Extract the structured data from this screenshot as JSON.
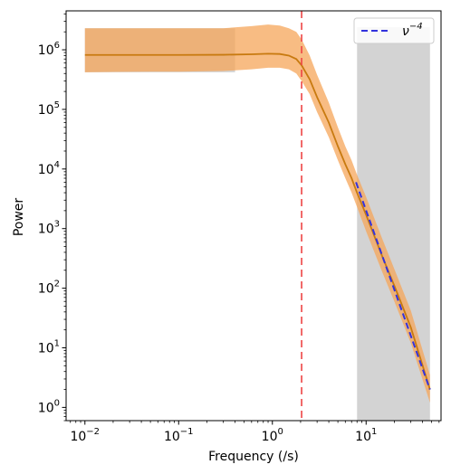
{
  "chart_data": {
    "type": "line",
    "xlabel": "Frequency (/s)",
    "ylabel": "Power",
    "xscale": "log",
    "yscale": "log",
    "xlim": [
      0.0063,
      63
    ],
    "ylim": [
      0.6,
      4500000
    ],
    "xticks": [
      {
        "value": 0.01,
        "base": "10",
        "exp": "−2"
      },
      {
        "value": 0.1,
        "base": "10",
        "exp": "−1"
      },
      {
        "value": 1,
        "base": "10",
        "exp": "0"
      },
      {
        "value": 10,
        "base": "10",
        "exp": "1"
      }
    ],
    "yticks": [
      {
        "value": 1,
        "base": "10",
        "exp": "0"
      },
      {
        "value": 10,
        "base": "10",
        "exp": "1"
      },
      {
        "value": 100,
        "base": "10",
        "exp": "2"
      },
      {
        "value": 1000,
        "base": "10",
        "exp": "3"
      },
      {
        "value": 10000,
        "base": "10",
        "exp": "4"
      },
      {
        "value": 100000,
        "base": "10",
        "exp": "5"
      },
      {
        "value": 1000000,
        "base": "10",
        "exp": "6"
      }
    ],
    "shaded_regions": [
      {
        "x": [
          0.01,
          0.4
        ],
        "y": [
          420000,
          2300000
        ],
        "color": "#d3d3d3"
      },
      {
        "x": [
          8,
          48
        ],
        "y": [
          0.6,
          2400000
        ],
        "color": "#d3d3d3"
      }
    ],
    "vline": {
      "x": 2.05,
      "color": "#ee4444"
    },
    "series": [
      {
        "style": "line",
        "color": "#c87a10",
        "band_color": "#f5a55a",
        "x": [
          0.01,
          0.05,
          0.1,
          0.3,
          0.6,
          0.9,
          1.2,
          1.5,
          1.8,
          2.05,
          2.5,
          3,
          4,
          5,
          6,
          7,
          8,
          10,
          15,
          20,
          30,
          48
        ],
        "y": [
          820000,
          820000,
          820000,
          825000,
          840000,
          860000,
          850000,
          800000,
          700000,
          550000,
          320000,
          160000,
          60000,
          24000,
          12000,
          7000,
          4000,
          1700,
          330,
          110,
          22,
          2
        ],
        "band_low": [
          420000,
          430000,
          430000,
          440000,
          470000,
          500000,
          500000,
          470000,
          400000,
          300000,
          180000,
          90000,
          34000,
          14000,
          7000,
          4000,
          2300,
          900,
          180,
          60,
          12,
          1.2
        ],
        "band_high": [
          2300000,
          2300000,
          2300000,
          2300000,
          2500000,
          2650000,
          2550000,
          2300000,
          2000000,
          1500000,
          800000,
          380000,
          130000,
          50000,
          24000,
          14000,
          8000,
          3400,
          650,
          210,
          42,
          3.5
        ]
      },
      {
        "name": "ν^−4",
        "style": "dashed",
        "color": "#3333dd",
        "x": [
          7.8,
          48
        ],
        "y": [
          6000,
          2
        ]
      }
    ],
    "legend": {
      "position": "top-right",
      "entries": [
        {
          "base": "ν",
          "exp": "−4",
          "color": "#3333dd"
        }
      ]
    }
  }
}
